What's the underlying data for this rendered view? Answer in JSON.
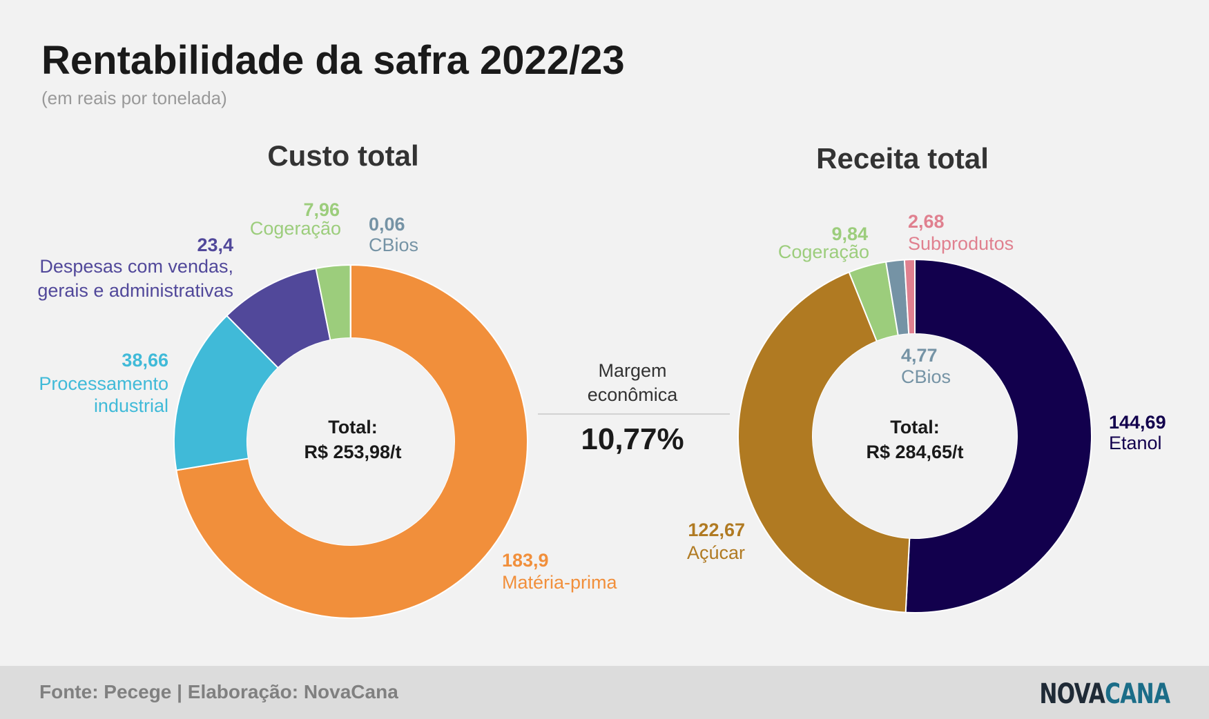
{
  "title": "Rentabilidade da safra 2022/23",
  "subtitle": "(em reais por tonelada)",
  "margin": {
    "label_line1": "Margem",
    "label_line2": "econômica",
    "value": "10,77%"
  },
  "footer": {
    "source": "Fonte: Pecege | Elaboração: NovaCana",
    "logo_part1": "NOVA",
    "logo_part2": "CANA"
  },
  "chart_data": [
    {
      "type": "pie",
      "title": "Custo total",
      "center_label": "Total:",
      "center_value": "R$ 253,98/t",
      "slices": [
        {
          "name": "Matéria-prima",
          "value": 183.9,
          "value_text": "183,9",
          "color": "#f18f3b"
        },
        {
          "name": "Processamento industrial",
          "value": 38.66,
          "value_text": "38,66",
          "color": "#40bad8"
        },
        {
          "name": "Despesas com vendas, gerais e administrativas",
          "value": 23.4,
          "value_text": "23,4",
          "color": "#51489a"
        },
        {
          "name": "Cogeração",
          "value": 7.96,
          "value_text": "7,96",
          "color": "#9ccd7c"
        },
        {
          "name": "CBios",
          "value": 0.06,
          "value_text": "0,06",
          "color": "#7593a5"
        }
      ]
    },
    {
      "type": "pie",
      "title": "Receita total",
      "center_label": "Total:",
      "center_value": "R$ 284,65/t",
      "slices": [
        {
          "name": "Etanol",
          "value": 144.69,
          "value_text": "144,69",
          "color": "#12004d"
        },
        {
          "name": "Açúcar",
          "value": 122.67,
          "value_text": "122,67",
          "color": "#b07a22"
        },
        {
          "name": "Cogeração",
          "value": 9.84,
          "value_text": "9,84",
          "color": "#9ccd7c"
        },
        {
          "name": "CBios",
          "value": 4.77,
          "value_text": "4,77",
          "color": "#7593a5"
        },
        {
          "name": "Subprodutos",
          "value": 2.68,
          "value_text": "2,68",
          "color": "#e0808f"
        }
      ]
    }
  ]
}
